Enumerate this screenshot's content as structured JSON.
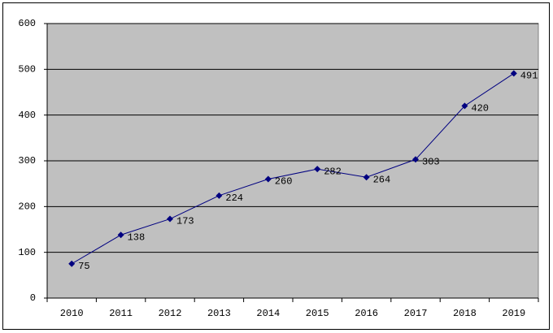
{
  "chart_data": {
    "type": "line",
    "categories": [
      "2010",
      "2011",
      "2012",
      "2013",
      "2014",
      "2015",
      "2016",
      "2017",
      "2018",
      "2019"
    ],
    "values": [
      75,
      138,
      173,
      224,
      260,
      282,
      264,
      303,
      420,
      491
    ],
    "color": "#000080",
    "ylim": [
      0,
      600
    ],
    "yticks": [
      0,
      100,
      200,
      300,
      400,
      500,
      600
    ],
    "grid": true,
    "plot_background": "#c0c0c0"
  }
}
